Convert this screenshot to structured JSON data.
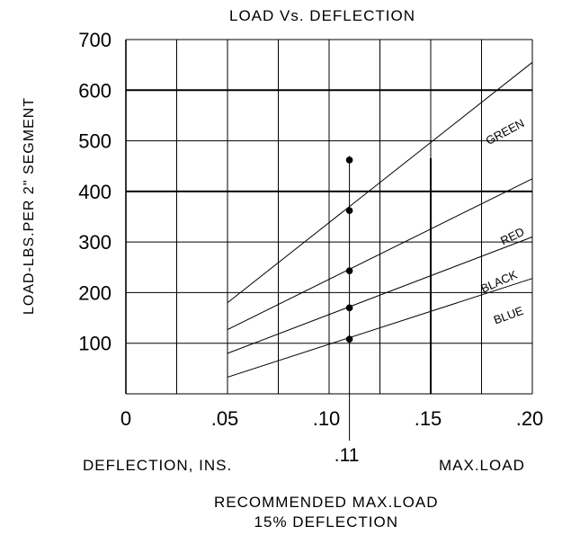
{
  "chart_data": {
    "type": "line",
    "title": "LOAD Vs. DEFLECTION",
    "xlabel": "DEFLECTION, INS.",
    "ylabel": "LOAD-LBS.PER 2\" SEGMENT",
    "xlim": [
      0,
      0.2
    ],
    "ylim": [
      0,
      700
    ],
    "x_tick_labels": [
      "0",
      ".05",
      ".10",
      ".15",
      ".20"
    ],
    "x_tick_values": [
      0,
      0.05,
      0.1,
      0.15,
      0.2
    ],
    "y_tick_labels": [
      "100",
      "200",
      "300",
      "400",
      "500",
      "600",
      "700"
    ],
    "y_tick_values": [
      100,
      200,
      300,
      400,
      500,
      600,
      700
    ],
    "grid": true,
    "series": [
      {
        "name": "GREEN",
        "x": [
          0.05,
          0.2
        ],
        "y": [
          180,
          655
        ]
      },
      {
        "name": "RED",
        "x": [
          0.05,
          0.2
        ],
        "y": [
          127,
          425
        ]
      },
      {
        "name": "BLACK",
        "x": [
          0.05,
          0.2
        ],
        "y": [
          80,
          310
        ]
      },
      {
        "name": "BLUE",
        "x": [
          0.05,
          0.2
        ],
        "y": [
          33,
          228
        ]
      }
    ],
    "marker_line": {
      "x": 0.11,
      "label": ".11"
    },
    "marker_points": [
      {
        "x": 0.11,
        "y": 462
      },
      {
        "x": 0.11,
        "y": 362
      },
      {
        "x": 0.11,
        "y": 243
      },
      {
        "x": 0.11,
        "y": 170
      },
      {
        "x": 0.11,
        "y": 108
      }
    ],
    "annotations": {
      "max_load": "MAX.LOAD",
      "recommended_line1": "RECOMMENDED MAX.LOAD",
      "recommended_line2": "15% DEFLECTION"
    }
  }
}
